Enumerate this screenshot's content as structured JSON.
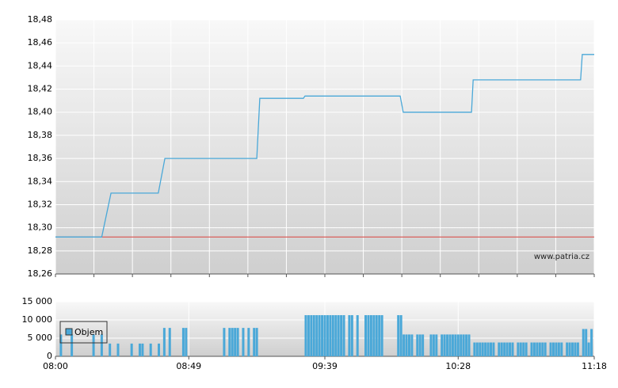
{
  "chart_data": [
    {
      "type": "line",
      "watermark": "www.patria.cz",
      "ylim": [
        18.26,
        18.48
      ],
      "yticks": [
        {
          "value": 18.26,
          "label": "18,26"
        },
        {
          "value": 18.28,
          "label": "18,28"
        },
        {
          "value": 18.3,
          "label": "18,30"
        },
        {
          "value": 18.32,
          "label": "18,32"
        },
        {
          "value": 18.34,
          "label": "18,34"
        },
        {
          "value": 18.36,
          "label": "18,36"
        },
        {
          "value": 18.38,
          "label": "18,38"
        },
        {
          "value": 18.4,
          "label": "18,40"
        },
        {
          "value": 18.42,
          "label": "18,42"
        },
        {
          "value": 18.44,
          "label": "18,44"
        },
        {
          "value": 18.46,
          "label": "18,46"
        },
        {
          "value": 18.48,
          "label": "18,48"
        }
      ],
      "xlim": [
        0,
        198
      ],
      "reference_line": {
        "value": 18.292,
        "color": "#d9534f"
      },
      "series": [
        {
          "color": "#4aa8d8",
          "x": [
            0,
            17,
            20.4,
            37.8,
            40.2,
            74,
            75.1,
            91.1,
            91.7,
            126.7,
            127.8,
            152.9,
            153.5,
            193,
            193.6,
            198
          ],
          "values": [
            18.292,
            18.292,
            18.33,
            18.33,
            18.36,
            18.36,
            18.412,
            18.412,
            18.414,
            18.414,
            18.4,
            18.4,
            18.428,
            18.428,
            18.45,
            18.45
          ]
        }
      ]
    },
    {
      "type": "bar",
      "ylim": [
        0,
        15000
      ],
      "yticks": [
        {
          "value": 0,
          "label": "0"
        },
        {
          "value": 5000,
          "label": "5 000"
        },
        {
          "value": 10000,
          "label": "10 000"
        },
        {
          "value": 15000,
          "label": "15 000"
        }
      ],
      "xlim": [
        0,
        198
      ],
      "xticks": [
        {
          "value": 0,
          "label": "08:00"
        },
        {
          "value": 49,
          "label": "08:49"
        },
        {
          "value": 99,
          "label": "09:39"
        },
        {
          "value": 148,
          "label": "10:28"
        },
        {
          "value": 198,
          "label": "11:18"
        }
      ],
      "series": [
        {
          "name": "Objem",
          "color": "#4aa8d8",
          "x": [
            2,
            6,
            14,
            17,
            20,
            23,
            28,
            31,
            32,
            35,
            38,
            40,
            42,
            47,
            48,
            62,
            64,
            65,
            66,
            67,
            69,
            71,
            73,
            74,
            92,
            93,
            94,
            95,
            96,
            97,
            98,
            99,
            100,
            101,
            102,
            103,
            104,
            105,
            106,
            108,
            109,
            111,
            114,
            115,
            116,
            117,
            118,
            119,
            120,
            126,
            127,
            128,
            129,
            130,
            131,
            133,
            134,
            135,
            138,
            139,
            140,
            142,
            143,
            144,
            145,
            146,
            147,
            148,
            149,
            150,
            151,
            152,
            154,
            155,
            156,
            157,
            158,
            159,
            160,
            161,
            163,
            164,
            165,
            166,
            167,
            168,
            170,
            171,
            172,
            173,
            175,
            176,
            177,
            178,
            179,
            180,
            182,
            183,
            184,
            185,
            186,
            188,
            189,
            190,
            191,
            192,
            194,
            195,
            196,
            197
          ],
          "values": [
            6000,
            6000,
            6000,
            6000,
            3500,
            3500,
            3500,
            3500,
            3500,
            3500,
            3500,
            7800,
            7800,
            7800,
            7800,
            7800,
            7800,
            7800,
            7800,
            7800,
            7800,
            7800,
            7800,
            7800,
            11300,
            11300,
            11300,
            11300,
            11300,
            11300,
            11300,
            11300,
            11300,
            11300,
            11300,
            11300,
            11300,
            11300,
            11300,
            11300,
            11300,
            11300,
            11300,
            11300,
            11300,
            11300,
            11300,
            11300,
            11300,
            11300,
            11300,
            6000,
            6000,
            6000,
            6000,
            6000,
            6000,
            6000,
            6000,
            6000,
            6000,
            6000,
            6000,
            6000,
            6000,
            6000,
            6000,
            6000,
            6000,
            6000,
            6000,
            6000,
            3800,
            3800,
            3800,
            3800,
            3800,
            3800,
            3800,
            3800,
            3800,
            3800,
            3800,
            3800,
            3800,
            3800,
            3800,
            3800,
            3800,
            3800,
            3800,
            3800,
            3800,
            3800,
            3800,
            3800,
            3800,
            3800,
            3800,
            3800,
            3800,
            3800,
            3800,
            3800,
            3800,
            3800,
            7500,
            7500,
            3800,
            7500
          ]
        }
      ]
    }
  ]
}
